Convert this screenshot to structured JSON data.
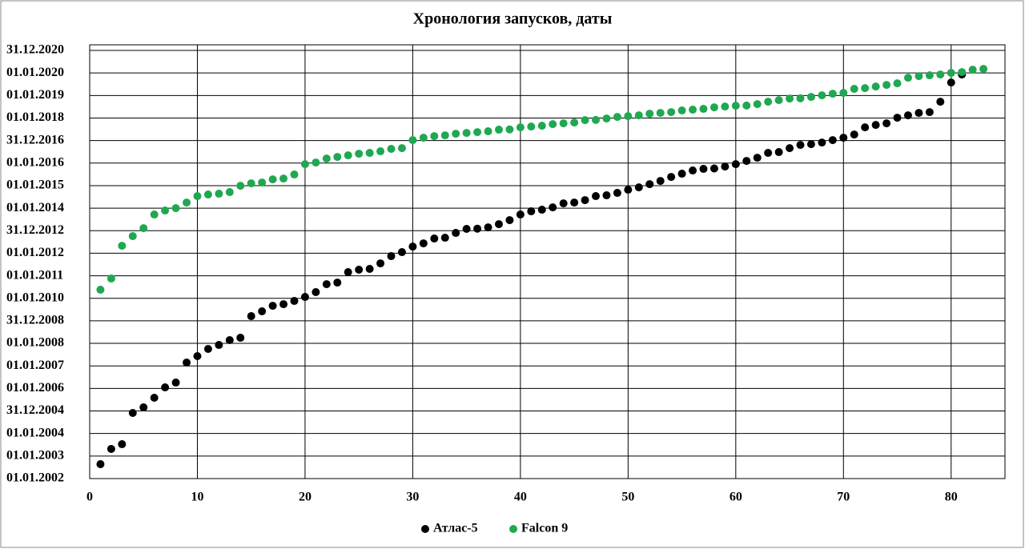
{
  "chart_data": {
    "type": "scatter",
    "title": "Хронология запусков, даты",
    "xlim": [
      0,
      85
    ],
    "xticks": [
      0,
      10,
      20,
      30,
      40,
      50,
      60,
      70,
      80
    ],
    "ylim": [
      37257,
      44192
    ],
    "yticks": [
      {
        "value": 37257,
        "label": "01.01.2002"
      },
      {
        "value": 37622,
        "label": "01.01.2003"
      },
      {
        "value": 37987,
        "label": "01.01.2004"
      },
      {
        "value": 38352,
        "label": "31.12.2004"
      },
      {
        "value": 38717,
        "label": "01.01.2006"
      },
      {
        "value": 39082,
        "label": "01.01.2007"
      },
      {
        "value": 39447,
        "label": "01.01.2008"
      },
      {
        "value": 39812,
        "label": "31.12.2008"
      },
      {
        "value": 40177,
        "label": "01.01.2010"
      },
      {
        "value": 40542,
        "label": "01.01.2011"
      },
      {
        "value": 40907,
        "label": "01.01.2012"
      },
      {
        "value": 41272,
        "label": "31.12.2012"
      },
      {
        "value": 41637,
        "label": "01.01.2014"
      },
      {
        "value": 42002,
        "label": "01.01.2015"
      },
      {
        "value": 42367,
        "label": "01.01.2016"
      },
      {
        "value": 42732,
        "label": "31.12.2016"
      },
      {
        "value": 43097,
        "label": "01.01.2018"
      },
      {
        "value": 43462,
        "label": "01.01.2019"
      },
      {
        "value": 43827,
        "label": "01.01.2020"
      },
      {
        "value": 44192,
        "label": "31.12.2020"
      }
    ],
    "grid": true,
    "legend": "bottom",
    "series": [
      {
        "name": "Атлас-5",
        "color": "#000000",
        "x": [
          1,
          2,
          3,
          4,
          5,
          6,
          7,
          8,
          9,
          10,
          11,
          12,
          13,
          14,
          15,
          16,
          17,
          18,
          19,
          20,
          21,
          22,
          23,
          24,
          25,
          26,
          27,
          28,
          29,
          30,
          31,
          32,
          33,
          34,
          35,
          36,
          37,
          38,
          39,
          40,
          41,
          42,
          43,
          44,
          45,
          46,
          47,
          48,
          49,
          50,
          51,
          52,
          53,
          54,
          55,
          56,
          57,
          58,
          59,
          60,
          61,
          62,
          63,
          64,
          65,
          66,
          67,
          68,
          69,
          70,
          71,
          72,
          73,
          74,
          75,
          76,
          77,
          78,
          79,
          80,
          81
        ],
        "values": [
          37490,
          37737,
          37814,
          38320,
          38410,
          38566,
          38734,
          38812,
          39136,
          39240,
          39357,
          39421,
          39499,
          39538,
          39888,
          39966,
          40056,
          40082,
          40134,
          40199,
          40277,
          40406,
          40432,
          40601,
          40640,
          40653,
          40743,
          40860,
          40925,
          41015,
          41067,
          41145,
          41158,
          41236,
          41301,
          41305,
          41326,
          41378,
          41443,
          41534,
          41586,
          41612,
          41650,
          41715,
          41728,
          41767,
          41832,
          41845,
          41884,
          41936,
          41974,
          42026,
          42078,
          42143,
          42195,
          42247,
          42273,
          42280,
          42311,
          42350,
          42402,
          42454,
          42532,
          42545,
          42609,
          42661,
          42674,
          42700,
          42739,
          42778,
          42830,
          42946,
          42985,
          43011,
          43102,
          43141,
          43180,
          43193,
          43361,
          43672,
          43802
        ]
      },
      {
        "name": "Falcon 9",
        "color": "#1fa851",
        "x": [
          1,
          2,
          3,
          4,
          5,
          6,
          7,
          8,
          9,
          10,
          11,
          12,
          13,
          14,
          15,
          16,
          17,
          18,
          19,
          20,
          21,
          22,
          23,
          24,
          25,
          26,
          27,
          28,
          29,
          30,
          31,
          32,
          33,
          34,
          35,
          36,
          37,
          38,
          39,
          40,
          41,
          42,
          43,
          44,
          45,
          46,
          47,
          48,
          49,
          50,
          51,
          52,
          53,
          54,
          55,
          56,
          57,
          58,
          59,
          60,
          61,
          62,
          63,
          64,
          65,
          66,
          67,
          68,
          69,
          70,
          71,
          72,
          73,
          74,
          75,
          76,
          77,
          78,
          79,
          80,
          81,
          82,
          83
        ],
        "values": [
          40316,
          40497,
          41028,
          41184,
          41313,
          41534,
          41599,
          41637,
          41728,
          41832,
          41858,
          41871,
          41897,
          42000,
          42039,
          42052,
          42104,
          42117,
          42182,
          42350,
          42376,
          42441,
          42467,
          42493,
          42519,
          42532,
          42558,
          42597,
          42609,
          42739,
          42778,
          42804,
          42817,
          42843,
          42856,
          42869,
          42882,
          42908,
          42912,
          42946,
          42959,
          42972,
          42998,
          43011,
          43024,
          43063,
          43066,
          43089,
          43115,
          43128,
          43141,
          43167,
          43180,
          43193,
          43219,
          43232,
          43245,
          43270,
          43283,
          43296,
          43299,
          43322,
          43361,
          43387,
          43413,
          43416,
          43439,
          43465,
          43491,
          43504,
          43569,
          43581,
          43607,
          43633,
          43659,
          43750,
          43776,
          43789,
          43802,
          43828,
          43841,
          43880,
          43893
        ]
      }
    ]
  }
}
